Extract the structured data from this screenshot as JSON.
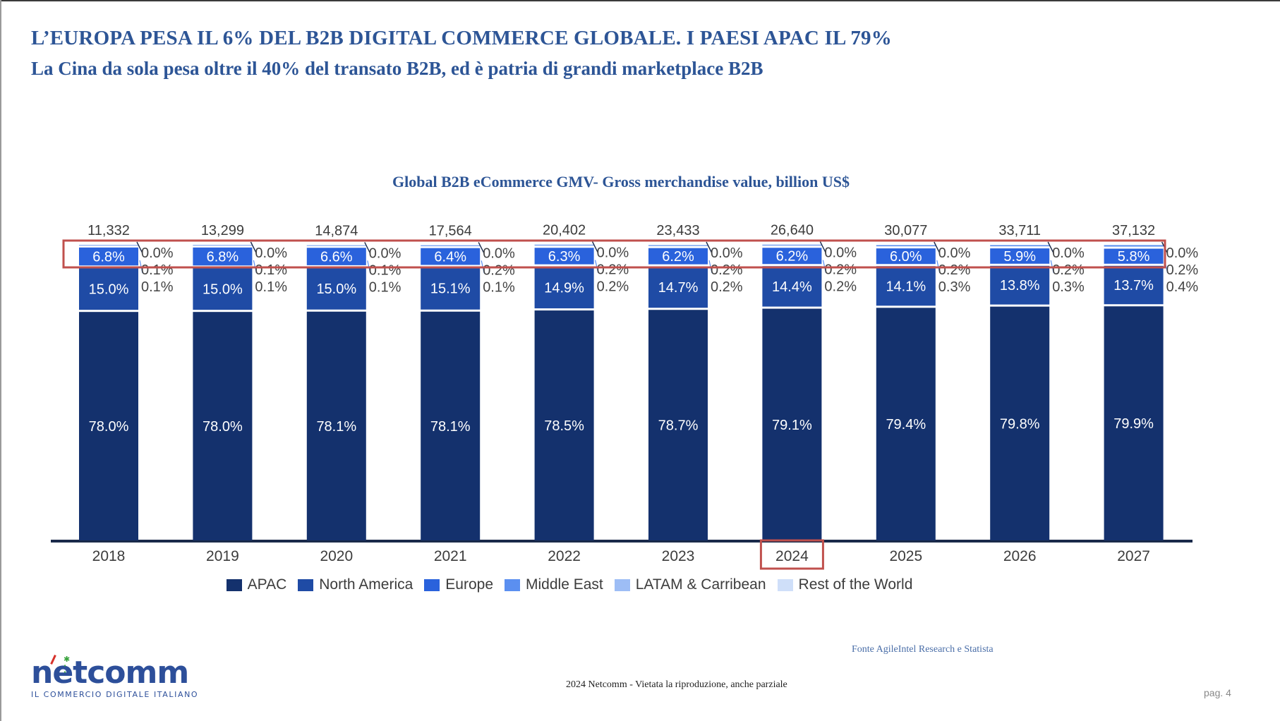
{
  "slide": {
    "title": "L’EUROPA PESA IL 6% DEL B2B DIGITAL COMMERCE GLOBALE. I PAESI APAC IL 79%",
    "subtitle": "La Cina da sola pesa oltre il 40% del transato B2B, ed è patria di grandi marketplace B2B",
    "source": "Fonte AgileIntel Research e Statista",
    "copyright": "2024  Netcomm  - Vietata la riproduzione, anche parziale",
    "page": "pag. 4",
    "logo": {
      "word": "netcomm",
      "tagline": "IL COMMERCIO DIGITALE ITALIANO"
    }
  },
  "highlights": {
    "row": "Europe",
    "year": "2024",
    "color": "#c0504d"
  },
  "chart_data": {
    "type": "bar",
    "stacked": true,
    "percent_stacked": true,
    "title": "Global B2B eCommerce GMV- Gross merchandise value, billion US$",
    "xlabel": "",
    "ylabel": "",
    "ylim": [
      0,
      100
    ],
    "grid": false,
    "legend_position": "bottom",
    "categories": [
      "2018",
      "2019",
      "2020",
      "2021",
      "2022",
      "2023",
      "2024",
      "2025",
      "2026",
      "2027"
    ],
    "totals": [
      "11,332",
      "13,299",
      "14,874",
      "17,564",
      "20,402",
      "23,433",
      "26,640",
      "30,077",
      "33,711",
      "37,132"
    ],
    "series": [
      {
        "name": "APAC",
        "color": "#14316d",
        "values": [
          78.0,
          78.0,
          78.1,
          78.1,
          78.5,
          78.7,
          79.1,
          79.4,
          79.8,
          79.9
        ]
      },
      {
        "name": "North America",
        "color": "#1f4ba5",
        "values": [
          15.0,
          15.0,
          15.0,
          15.1,
          14.9,
          14.7,
          14.4,
          14.1,
          13.8,
          13.7
        ]
      },
      {
        "name": "Europe",
        "color": "#2a62dc",
        "values": [
          6.8,
          6.8,
          6.6,
          6.4,
          6.3,
          6.2,
          6.2,
          6.0,
          5.9,
          5.8
        ]
      },
      {
        "name": "Middle East",
        "color": "#5b8ff0",
        "values": [
          0.1,
          0.1,
          0.1,
          0.1,
          0.2,
          0.2,
          0.2,
          0.3,
          0.3,
          0.4
        ]
      },
      {
        "name": "LATAM & Carribean",
        "color": "#9dbdf5",
        "values": [
          0.1,
          0.1,
          0.1,
          0.2,
          0.2,
          0.2,
          0.2,
          0.2,
          0.2,
          0.2
        ]
      },
      {
        "name": "Rest of the World",
        "color": "#cfdff9",
        "values": [
          0.0,
          0.0,
          0.0,
          0.0,
          0.0,
          0.0,
          0.0,
          0.0,
          0.0,
          0.0
        ]
      }
    ]
  }
}
